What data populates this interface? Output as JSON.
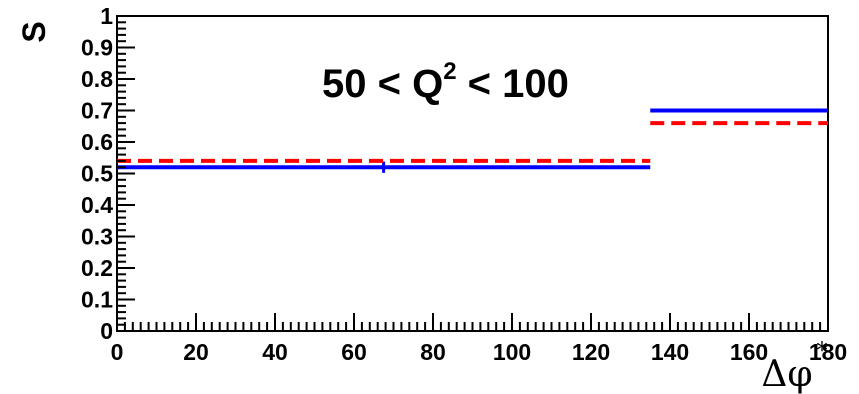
{
  "chart_data": {
    "type": "line",
    "title": "",
    "xlabel": "Δφ*",
    "xlabel_main": "Δφ",
    "xlabel_sup": "*",
    "ylabel": "S",
    "xlim": [
      0,
      180
    ],
    "ylim": [
      0,
      1
    ],
    "x_ticks": [
      "0",
      "20",
      "40",
      "60",
      "80",
      "100",
      "120",
      "140",
      "160",
      "180"
    ],
    "y_ticks": [
      "0",
      "0.1",
      "0.2",
      "0.3",
      "0.4",
      "0.5",
      "0.6",
      "0.7",
      "0.8",
      "0.9",
      "1"
    ],
    "annotation": {
      "prefix": "50 < Q",
      "sup": "2",
      "suffix": " < 100"
    },
    "grid": false,
    "series": [
      {
        "color": "#0000ff",
        "style": "solid",
        "segments": [
          {
            "x0": 0,
            "x1": 135,
            "y": 0.52
          },
          {
            "x0": 135,
            "x1": 180,
            "y": 0.7
          }
        ],
        "error_bars": [
          {
            "x": 67.5,
            "y": 0.52,
            "err": 0.018
          }
        ]
      },
      {
        "color": "#ff0000",
        "style": "dashed",
        "segments": [
          {
            "x0": 0,
            "x1": 135,
            "y": 0.54
          },
          {
            "x0": 135,
            "x1": 180,
            "y": 0.66
          }
        ],
        "error_bars": []
      }
    ]
  }
}
